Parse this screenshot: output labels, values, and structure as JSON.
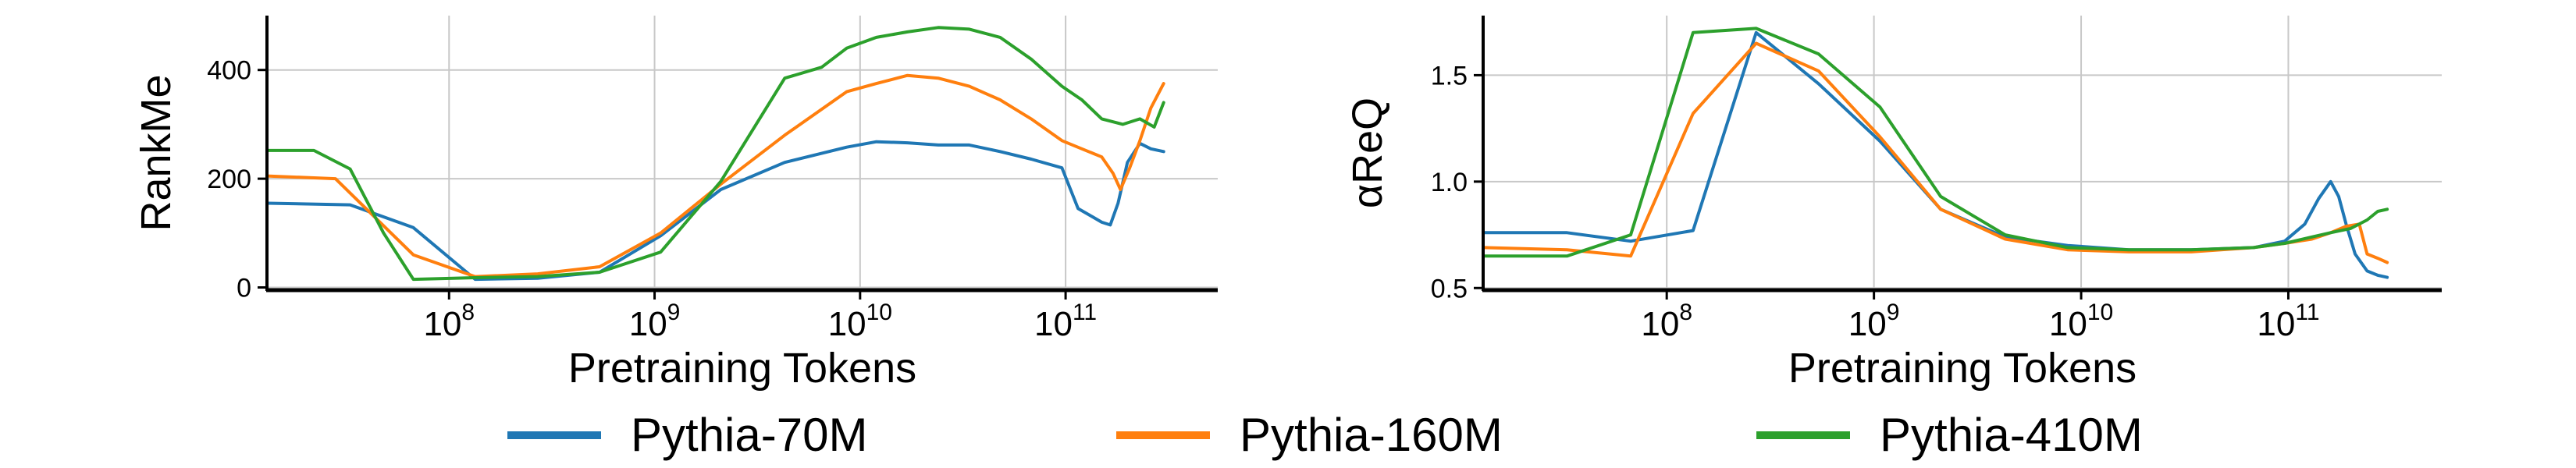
{
  "figure": {
    "legend": [
      {
        "name": "Pythia-70M",
        "color": "#1f77b4"
      },
      {
        "name": "Pythia-160M",
        "color": "#ff7f0e"
      },
      {
        "name": "Pythia-410M",
        "color": "#2ca02c"
      }
    ]
  },
  "chart_data": [
    {
      "type": "line",
      "xlabel": "Pretraining Tokens",
      "ylabel": "RankMe",
      "xscale": "log",
      "xlim": [
        13000000.0,
        550000000000.0
      ],
      "ylim": [
        -5,
        500
      ],
      "xticks": [
        {
          "value": 100000000.0,
          "base": "10",
          "exp": "8"
        },
        {
          "value": 1000000000.0,
          "base": "10",
          "exp": "9"
        },
        {
          "value": 10000000000.0,
          "base": "10",
          "exp": "10"
        },
        {
          "value": 100000000000.0,
          "base": "10",
          "exp": "11"
        }
      ],
      "yticks": [
        {
          "value": 0,
          "label": "0"
        },
        {
          "value": 200,
          "label": "200"
        },
        {
          "value": 400,
          "label": "400"
        }
      ],
      "grid": true,
      "series": [
        {
          "name": "Pythia-70M",
          "color": "#1f77b4",
          "x": [
            13000000.0,
            33000000.0,
            67000000.0,
            134000000.0,
            270000000.0,
            540000000.0,
            1070000000.0,
            2100000000.0,
            4300000000.0,
            8600000000.0,
            12000000000.0,
            17000000000.0,
            24000000000.0,
            34000000000.0,
            48000000000.0,
            68000000000.0,
            96000000000.0,
            115000000000.0,
            135000000000.0,
            150000000000.0,
            165000000000.0,
            180000000000.0,
            200000000000.0,
            230000000000.0,
            260000000000.0,
            300000000000.0
          ],
          "y": [
            155,
            152,
            110,
            15,
            17,
            28,
            95,
            180,
            230,
            258,
            268,
            266,
            262,
            262,
            250,
            236,
            220,
            145,
            130,
            120,
            115,
            155,
            230,
            265,
            255,
            250
          ]
        },
        {
          "name": "Pythia-160M",
          "color": "#ff7f0e",
          "x": [
            13000000.0,
            28000000.0,
            67000000.0,
            134000000.0,
            270000000.0,
            540000000.0,
            1070000000.0,
            2100000000.0,
            4300000000.0,
            8600000000.0,
            12000000000.0,
            17000000000.0,
            24000000000.0,
            34000000000.0,
            48000000000.0,
            68000000000.0,
            96000000000.0,
            120000000000.0,
            150000000000.0,
            170000000000.0,
            185000000000.0,
            205000000000.0,
            230000000000.0,
            260000000000.0,
            300000000000.0
          ],
          "y": [
            205,
            200,
            60,
            20,
            25,
            38,
            100,
            190,
            280,
            360,
            375,
            390,
            385,
            370,
            345,
            310,
            270,
            255,
            240,
            210,
            180,
            220,
            270,
            330,
            375
          ]
        },
        {
          "name": "Pythia-410M",
          "color": "#2ca02c",
          "x": [
            13000000.0,
            22000000.0,
            33000000.0,
            48000000.0,
            67000000.0,
            134000000.0,
            270000000.0,
            540000000.0,
            1070000000.0,
            2100000000.0,
            4300000000.0,
            6500000000.0,
            8600000000.0,
            12000000000.0,
            17000000000.0,
            24000000000.0,
            34000000000.0,
            48000000000.0,
            68000000000.0,
            96000000000.0,
            120000000000.0,
            150000000000.0,
            190000000000.0,
            230000000000.0,
            270000000000.0,
            300000000000.0
          ],
          "y": [
            252,
            252,
            218,
            100,
            15,
            18,
            20,
            28,
            65,
            195,
            385,
            405,
            440,
            460,
            470,
            478,
            475,
            460,
            420,
            370,
            345,
            310,
            300,
            310,
            295,
            340
          ]
        }
      ]
    },
    {
      "type": "line",
      "xlabel": "Pretraining Tokens",
      "ylabel": "αReQ",
      "xscale": "log",
      "xlim": [
        13000000.0,
        550000000000.0
      ],
      "ylim": [
        0.49,
        1.78
      ],
      "xticks": [
        {
          "value": 100000000.0,
          "base": "10",
          "exp": "8"
        },
        {
          "value": 1000000000.0,
          "base": "10",
          "exp": "9"
        },
        {
          "value": 10000000000.0,
          "base": "10",
          "exp": "10"
        },
        {
          "value": 100000000000.0,
          "base": "10",
          "exp": "11"
        }
      ],
      "yticks": [
        {
          "value": 0.5,
          "label": "0.5"
        },
        {
          "value": 1.0,
          "label": "1.0"
        },
        {
          "value": 1.5,
          "label": "1.5"
        }
      ],
      "grid": true,
      "series": [
        {
          "name": "Pythia-70M",
          "color": "#1f77b4",
          "x": [
            13000000.0,
            33000000.0,
            67000000.0,
            134000000.0,
            270000000.0,
            540000000.0,
            1070000000.0,
            2100000000.0,
            4300000000.0,
            8600000000.0,
            17000000000.0,
            34000000000.0,
            68000000000.0,
            96000000000.0,
            120000000000.0,
            140000000000.0,
            160000000000.0,
            175000000000.0,
            190000000000.0,
            210000000000.0,
            240000000000.0,
            270000000000.0,
            300000000000.0
          ],
          "y": [
            0.76,
            0.76,
            0.72,
            0.77,
            1.7,
            1.46,
            1.19,
            0.87,
            0.74,
            0.7,
            0.68,
            0.68,
            0.69,
            0.72,
            0.8,
            0.92,
            1.0,
            0.93,
            0.8,
            0.66,
            0.58,
            0.56,
            0.55
          ]
        },
        {
          "name": "Pythia-160M",
          "color": "#ff7f0e",
          "x": [
            13000000.0,
            33000000.0,
            67000000.0,
            134000000.0,
            270000000.0,
            540000000.0,
            1070000000.0,
            2100000000.0,
            4300000000.0,
            8600000000.0,
            17000000000.0,
            34000000000.0,
            68000000000.0,
            96000000000.0,
            130000000000.0,
            160000000000.0,
            190000000000.0,
            220000000000.0,
            240000000000.0,
            270000000000.0,
            300000000000.0
          ],
          "y": [
            0.69,
            0.68,
            0.65,
            1.32,
            1.65,
            1.52,
            1.21,
            0.87,
            0.73,
            0.68,
            0.67,
            0.67,
            0.69,
            0.71,
            0.73,
            0.76,
            0.79,
            0.8,
            0.66,
            0.64,
            0.62
          ]
        },
        {
          "name": "Pythia-410M",
          "color": "#2ca02c",
          "x": [
            13000000.0,
            33000000.0,
            67000000.0,
            134000000.0,
            270000000.0,
            540000000.0,
            1070000000.0,
            2100000000.0,
            4300000000.0,
            8600000000.0,
            17000000000.0,
            34000000000.0,
            68000000000.0,
            96000000000.0,
            130000000000.0,
            160000000000.0,
            200000000000.0,
            240000000000.0,
            270000000000.0,
            300000000000.0
          ],
          "y": [
            0.65,
            0.65,
            0.75,
            1.7,
            1.72,
            1.6,
            1.35,
            0.93,
            0.75,
            0.69,
            0.68,
            0.68,
            0.69,
            0.71,
            0.74,
            0.76,
            0.78,
            0.82,
            0.86,
            0.87
          ]
        }
      ]
    }
  ]
}
